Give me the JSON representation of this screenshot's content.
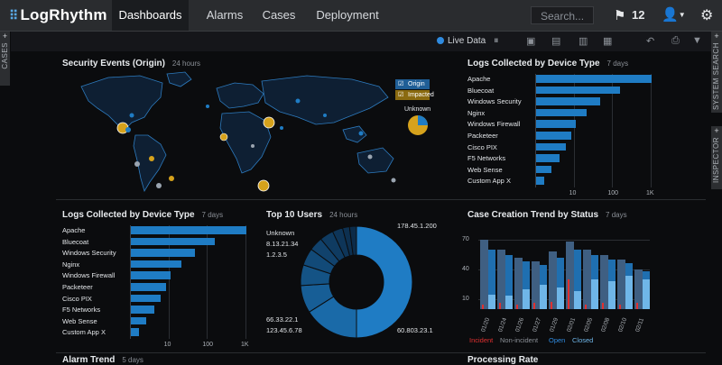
{
  "app": {
    "logo_text": "LogRhythm"
  },
  "nav": {
    "tabs": [
      {
        "label": "Dashboards",
        "active": true
      },
      {
        "label": "Alarms"
      },
      {
        "label": "Cases"
      },
      {
        "label": "Deployment"
      }
    ],
    "search_placeholder": "Search...",
    "flag_count": "12"
  },
  "toolbar": {
    "live_data_label": "Live Data"
  },
  "side_tabs": {
    "cases": "CASES",
    "system_search": "SYSTEM SEARCH",
    "inspector": "INSPECTOR"
  },
  "panels": {
    "security_events": {
      "title": "Security Events (Origin)",
      "subtitle": "24 hours",
      "legend": [
        "Origin",
        "Impacted"
      ],
      "unknown_label": "Unknown"
    },
    "logs_top_right": {
      "title": "Logs Collected by Device Type",
      "subtitle": "7 days"
    },
    "logs_bottom_left": {
      "title": "Logs Collected by Device Type",
      "subtitle": "7 days"
    },
    "top_users": {
      "title": "Top 10 Users",
      "subtitle": "24 hours"
    },
    "case_trend": {
      "title": "Case Creation Trend by Status",
      "subtitle": "7 days"
    },
    "alarm_trend": {
      "title": "Alarm Trend",
      "subtitle": "5 days"
    },
    "processing_rate": {
      "title": "Processing Rate"
    }
  },
  "colors": {
    "accent": "#1f7cc4",
    "gold": "#d6a21c",
    "incident": "#e03030",
    "nonincident": "#7a7f86",
    "open": "#2f8be0",
    "closed": "#6fb6e8"
  },
  "chart_data": [
    {
      "id": "logs_device_top_right",
      "type": "bar",
      "orientation": "horizontal",
      "scale": "log",
      "categories": [
        "Apache",
        "Bluecoat",
        "Windows Security",
        "Nginx",
        "Windows Firewall",
        "Packeteer",
        "Cisco PIX",
        "F5 Networks",
        "Web Sense",
        "Custom App X"
      ],
      "values": [
        1000,
        150,
        45,
        20,
        11,
        8,
        6,
        4,
        2.5,
        1.6
      ],
      "xtick_labels": [
        "10",
        "100",
        "1K"
      ],
      "xlim": [
        1,
        1000
      ]
    },
    {
      "id": "logs_device_bottom_left",
      "type": "bar",
      "orientation": "horizontal",
      "scale": "log",
      "categories": [
        "Apache",
        "Bluecoat",
        "Windows Security",
        "Nginx",
        "Windows Firewall",
        "Packeteer",
        "Cisco PIX",
        "F5 Networks",
        "Web Sense",
        "Custom App X"
      ],
      "values": [
        1000,
        150,
        45,
        20,
        11,
        8,
        6,
        4,
        2.5,
        1.6
      ],
      "xtick_labels": [
        "10",
        "100",
        "1K"
      ],
      "xlim": [
        1,
        1000
      ]
    },
    {
      "id": "top_users",
      "type": "pie",
      "labels": [
        "178.45.1.200",
        "60.803.23.1",
        "123.45.6.78",
        "66.33.22.1",
        "Unknown",
        "8.13.21.34",
        "1.2.3.5",
        "",
        "",
        ""
      ],
      "values": [
        50,
        16,
        8,
        6,
        5,
        4,
        4,
        3,
        2,
        2
      ]
    },
    {
      "id": "case_trend",
      "type": "bar",
      "categories": [
        "01/20",
        "01/24",
        "01/26",
        "01/27",
        "01/29",
        "02/01",
        "02/05",
        "02/08",
        "02/10",
        "02/11"
      ],
      "ytick_labels": [
        "10",
        "40",
        "70"
      ],
      "ylim": [
        0,
        80
      ],
      "series": [
        {
          "name": "Incident",
          "values": [
            5,
            6,
            5,
            6,
            7,
            30,
            5,
            6,
            5,
            6
          ]
        },
        {
          "name": "Non-incident",
          "values": [
            70,
            60,
            52,
            48,
            58,
            68,
            60,
            55,
            50,
            40
          ]
        },
        {
          "name": "Open",
          "values": [
            60,
            55,
            48,
            45,
            52,
            60,
            55,
            50,
            46,
            38
          ]
        },
        {
          "name": "Closed",
          "values": [
            15,
            14,
            20,
            25,
            22,
            18,
            30,
            28,
            34,
            30
          ]
        }
      ],
      "legend": [
        "Incident",
        "Non-incident",
        "Open",
        "Closed"
      ]
    }
  ],
  "map_points": [
    {
      "label": "origin-1",
      "kind": "gold"
    },
    {
      "label": "origin-2",
      "kind": "gold"
    },
    {
      "label": "origin-3",
      "kind": "gold"
    },
    {
      "label": "origin-4",
      "kind": "gold"
    },
    {
      "label": "origin-5",
      "kind": "gold"
    },
    {
      "label": "origin-6",
      "kind": "gold"
    },
    {
      "label": "origin-7",
      "kind": "gold"
    },
    {
      "label": "origin-8",
      "kind": "gold"
    }
  ]
}
